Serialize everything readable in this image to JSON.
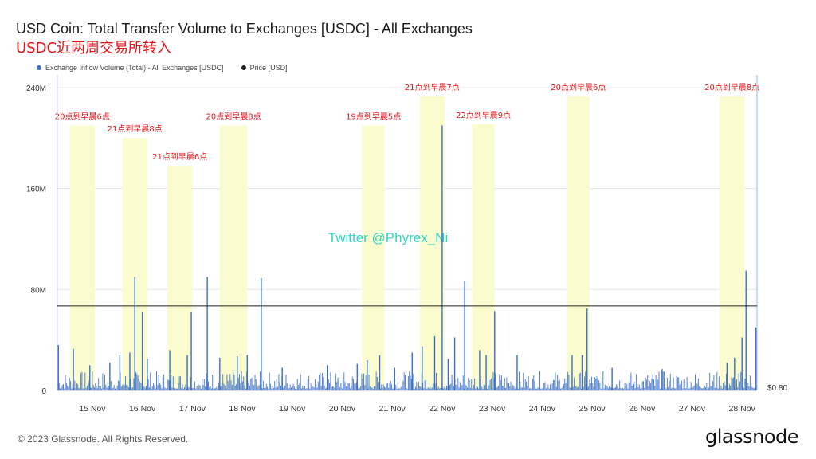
{
  "header": {
    "title": "USD Coin: Total Transfer Volume to Exchanges [USDC] - All Exchanges",
    "subtitle": "USDC近两周交易所转入"
  },
  "legend": {
    "items": [
      {
        "label": "Exchange Inflow Volume (Total) - All Exchanges [USDC]",
        "color": "#3a6fc4"
      },
      {
        "label": "Price [USD]",
        "color": "#222222"
      }
    ]
  },
  "watermark": "Twitter @Phyrex_Ni",
  "footer": {
    "copyright": "© 2023 Glassnode. All Rights Reserved.",
    "brand": "glassnode"
  },
  "chart_data": {
    "type": "bar",
    "x_ticks": [
      "15 Nov",
      "16 Nov",
      "17 Nov",
      "18 Nov",
      "19 Nov",
      "20 Nov",
      "21 Nov",
      "22 Nov",
      "23 Nov",
      "24 Nov",
      "25 Nov",
      "26 Nov",
      "27 Nov",
      "28 Nov"
    ],
    "y_ticks": [
      "0",
      "80M",
      "160M",
      "240M"
    ],
    "y_right_tick": "$0.80",
    "ylim": [
      0,
      250000000
    ],
    "xlim_days": [
      14.3,
      28.3
    ],
    "series": [
      {
        "name": "Exchange Inflow Volume (Total) - All Exchanges [USDC]",
        "color": "#3a6fc4",
        "spikes": [
          {
            "day": 14.32,
            "value": 36000000
          },
          {
            "day": 14.62,
            "value": 33000000
          },
          {
            "day": 14.95,
            "value": 20000000
          },
          {
            "day": 15.35,
            "value": 22000000
          },
          {
            "day": 15.55,
            "value": 28000000
          },
          {
            "day": 15.75,
            "value": 30000000
          },
          {
            "day": 15.85,
            "value": 90000000
          },
          {
            "day": 16.0,
            "value": 62000000
          },
          {
            "day": 16.1,
            "value": 25000000
          },
          {
            "day": 16.55,
            "value": 32000000
          },
          {
            "day": 16.9,
            "value": 28000000
          },
          {
            "day": 16.98,
            "value": 62000000
          },
          {
            "day": 17.3,
            "value": 90000000
          },
          {
            "day": 17.55,
            "value": 26000000
          },
          {
            "day": 17.9,
            "value": 27000000
          },
          {
            "day": 18.1,
            "value": 28000000
          },
          {
            "day": 18.38,
            "value": 89000000
          },
          {
            "day": 18.8,
            "value": 18000000
          },
          {
            "day": 19.7,
            "value": 20000000
          },
          {
            "day": 20.3,
            "value": 21000000
          },
          {
            "day": 20.5,
            "value": 24000000
          },
          {
            "day": 20.75,
            "value": 28000000
          },
          {
            "day": 21.05,
            "value": 18000000
          },
          {
            "day": 21.4,
            "value": 30000000
          },
          {
            "day": 21.6,
            "value": 35000000
          },
          {
            "day": 21.85,
            "value": 43000000
          },
          {
            "day": 22.0,
            "value": 210000000
          },
          {
            "day": 22.12,
            "value": 25000000
          },
          {
            "day": 22.25,
            "value": 42000000
          },
          {
            "day": 22.45,
            "value": 87000000
          },
          {
            "day": 22.75,
            "value": 32000000
          },
          {
            "day": 22.88,
            "value": 28000000
          },
          {
            "day": 23.05,
            "value": 63000000
          },
          {
            "day": 23.5,
            "value": 28000000
          },
          {
            "day": 24.6,
            "value": 28000000
          },
          {
            "day": 24.8,
            "value": 28000000
          },
          {
            "day": 24.9,
            "value": 65000000
          },
          {
            "day": 25.4,
            "value": 18000000
          },
          {
            "day": 26.4,
            "value": 17000000
          },
          {
            "day": 27.7,
            "value": 22000000
          },
          {
            "day": 27.85,
            "value": 26000000
          },
          {
            "day": 28.0,
            "value": 42000000
          },
          {
            "day": 28.08,
            "value": 95000000
          },
          {
            "day": 28.28,
            "value": 50000000
          }
        ]
      },
      {
        "name": "Price [USD]",
        "color": "#222222",
        "value_left_axis": 67000000
      }
    ],
    "highlights": [
      {
        "label": "20点到早晨6点",
        "start": 14.55,
        "end": 15.05,
        "top": 210000000
      },
      {
        "label": "21点到早晨8点",
        "start": 15.6,
        "end": 16.1,
        "top": 200000000
      },
      {
        "label": "21点到早晨6点",
        "start": 16.5,
        "end": 17.0,
        "top": 178000000
      },
      {
        "label": "20点到早晨8点",
        "start": 17.55,
        "end": 18.1,
        "top": 210000000
      },
      {
        "label": "19点到早晨5点",
        "start": 20.4,
        "end": 20.85,
        "top": 210000000
      },
      {
        "label": "21点到早晨7点",
        "start": 21.55,
        "end": 22.05,
        "top": 233000000
      },
      {
        "label": "22点到早晨9点",
        "start": 22.6,
        "end": 23.05,
        "top": 211000000
      },
      {
        "label": "20点到早晨6点",
        "start": 24.5,
        "end": 24.95,
        "top": 233000000
      },
      {
        "label": "20点到早晨8点",
        "start": 27.55,
        "end": 28.05,
        "top": 233000000
      }
    ]
  }
}
